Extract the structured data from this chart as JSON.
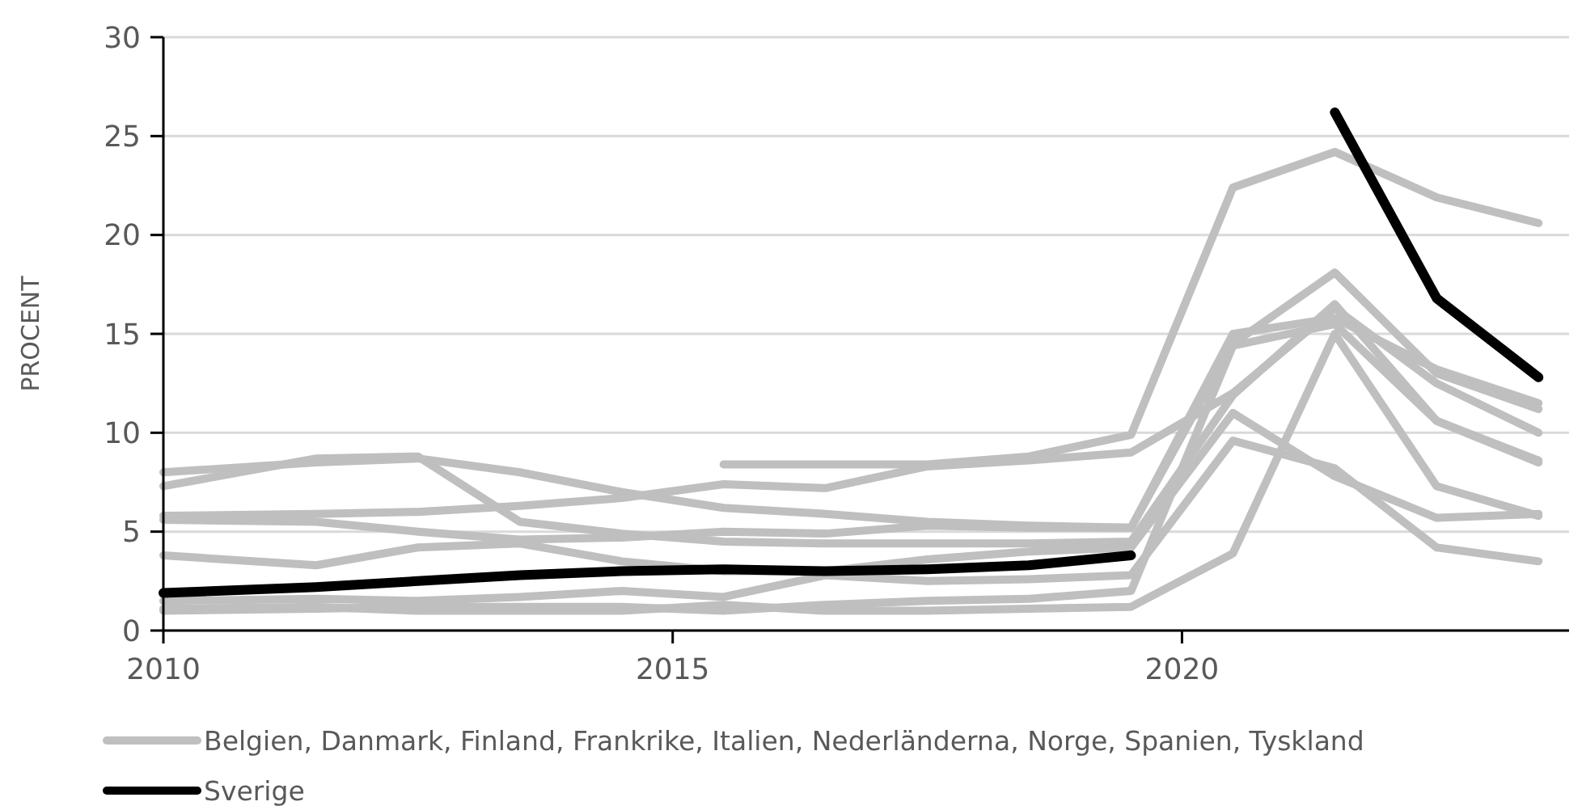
{
  "chart_data": {
    "type": "line",
    "ylabel": "PROCENT",
    "x": [
      2010,
      2011.5,
      2012.5,
      2013.5,
      2014.5,
      2015.5,
      2016.5,
      2017.5,
      2018.5,
      2019.5,
      2020.5,
      2021.5,
      2022.5,
      2023.5
    ],
    "xlim": [
      2010,
      2023.8
    ],
    "xticks": [
      2010,
      2015,
      2020
    ],
    "ylim": [
      0,
      30
    ],
    "yticks": [
      0,
      5,
      10,
      15,
      20,
      25,
      30
    ],
    "grid": "y",
    "legend": "bottom",
    "line_style": "solid",
    "marker": "none",
    "series": [
      {
        "name": "Belgien, Danmark, Finland, Frankrike, Italien, Nederländerna, Norge, Spanien, Tyskland",
        "color": "#bfbfbf",
        "values": [
          8.0,
          8.5,
          8.7,
          8.0,
          7.0,
          6.2,
          5.9,
          5.5,
          5.3,
          5.2,
          15.0,
          15.8,
          13.2,
          11.5
        ]
      },
      {
        "color": "#bfbfbf",
        "values": [
          7.3,
          8.7,
          8.8,
          5.5,
          4.9,
          4.5,
          4.4,
          4.4,
          4.4,
          4.5,
          11.9,
          16.5,
          10.6,
          8.6
        ]
      },
      {
        "color": "#bfbfbf",
        "values": [
          null,
          null,
          null,
          null,
          null,
          8.4,
          8.4,
          8.4,
          8.8,
          9.9,
          22.4,
          24.2,
          21.9,
          20.6
        ]
      },
      {
        "color": "#bfbfbf",
        "values": [
          5.8,
          5.9,
          6.0,
          6.3,
          6.7,
          7.4,
          7.2,
          8.3,
          8.6,
          9.0,
          12.0,
          16.3,
          12.5,
          10.0
        ]
      },
      {
        "color": "#bfbfbf",
        "values": [
          5.6,
          5.5,
          5.0,
          4.6,
          4.7,
          5.0,
          4.9,
          5.3,
          5.2,
          5.2,
          14.5,
          18.1,
          13.0,
          11.2
        ]
      },
      {
        "color": "#bfbfbf",
        "values": [
          3.8,
          3.3,
          4.2,
          4.4,
          3.5,
          3.0,
          3.0,
          3.6,
          4.0,
          4.2,
          11.0,
          7.8,
          5.7,
          5.9
        ]
      },
      {
        "color": "#bfbfbf",
        "values": [
          1.5,
          1.6,
          1.5,
          1.7,
          2.0,
          1.7,
          2.8,
          2.5,
          2.6,
          2.8,
          9.6,
          8.2,
          4.2,
          3.5
        ]
      },
      {
        "color": "#bfbfbf",
        "values": [
          1.1,
          1.2,
          1.0,
          1.0,
          1.0,
          1.3,
          1.0,
          1.0,
          1.1,
          1.2,
          3.9,
          15.0,
          7.3,
          5.8
        ]
      },
      {
        "color": "#bfbfbf",
        "values": [
          1.0,
          1.1,
          1.2,
          1.2,
          1.2,
          1.0,
          1.3,
          1.5,
          1.6,
          2.0,
          14.4,
          15.5,
          10.6,
          8.5
        ]
      },
      {
        "name": "Sverige",
        "color": "#000000",
        "values": [
          1.9,
          2.2,
          2.5,
          2.8,
          3.0,
          3.1,
          3.0,
          3.1,
          3.3,
          3.8,
          null,
          26.2,
          16.8,
          12.8
        ]
      }
    ]
  }
}
